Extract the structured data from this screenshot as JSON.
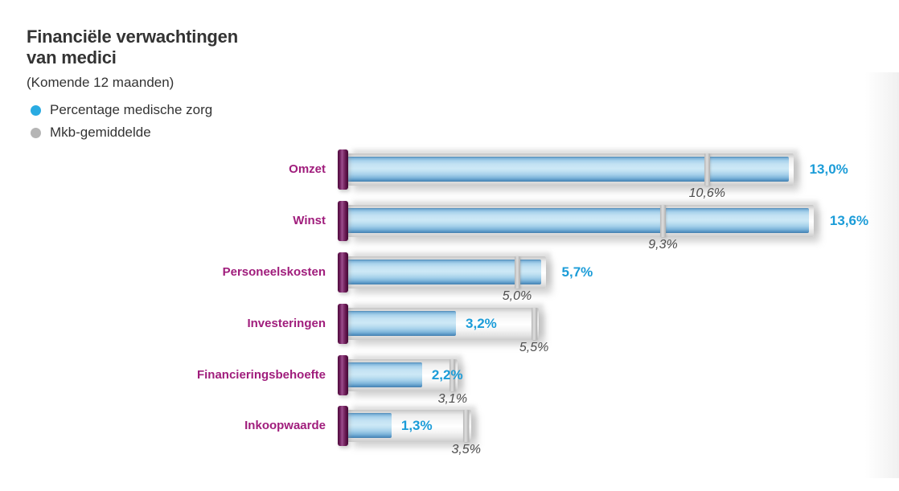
{
  "header": {
    "title_line1": "Financiële verwachtingen",
    "title_line2": "van medici",
    "subtitle": "(Komende 12 maanden)"
  },
  "legend": {
    "items": [
      {
        "label": "Percentage medische zorg",
        "color": "#29abe2"
      },
      {
        "label": "Mkb-gemiddelde",
        "color": "#b5b5b5"
      }
    ]
  },
  "chart_data": {
    "type": "bar",
    "orientation": "horizontal",
    "title": "Financiële verwachtingen van medici",
    "subtitle": "(Komende 12 maanden)",
    "categories": [
      "Omzet",
      "Winst",
      "Personeelskosten",
      "Investeringen",
      "Financieringsbehoefte",
      "Inkoopwaarde"
    ],
    "series": [
      {
        "name": "Percentage medische zorg",
        "color": "#29abe2",
        "values": [
          13.0,
          13.6,
          5.7,
          3.2,
          2.2,
          1.3
        ],
        "display_labels": [
          "13,0%",
          "13,6%",
          "5,7%",
          "3,2%",
          "2,2%",
          "1,3%"
        ]
      },
      {
        "name": "Mkb-gemiddelde",
        "color": "#b5b5b5",
        "values": [
          10.6,
          9.3,
          5.0,
          5.5,
          3.1,
          3.5
        ],
        "display_labels": [
          "10,6%",
          "9,3%",
          "5,0%",
          "5,5%",
          "3,1%",
          "3,5%"
        ]
      }
    ],
    "xlim": [
      0,
      15
    ],
    "grid": false,
    "legend_position": "top-left",
    "value_label_colors": {
      "primary": "#1b9cd8",
      "secondary": "#4d4d4d"
    },
    "category_label_color": "#a01d7c"
  }
}
